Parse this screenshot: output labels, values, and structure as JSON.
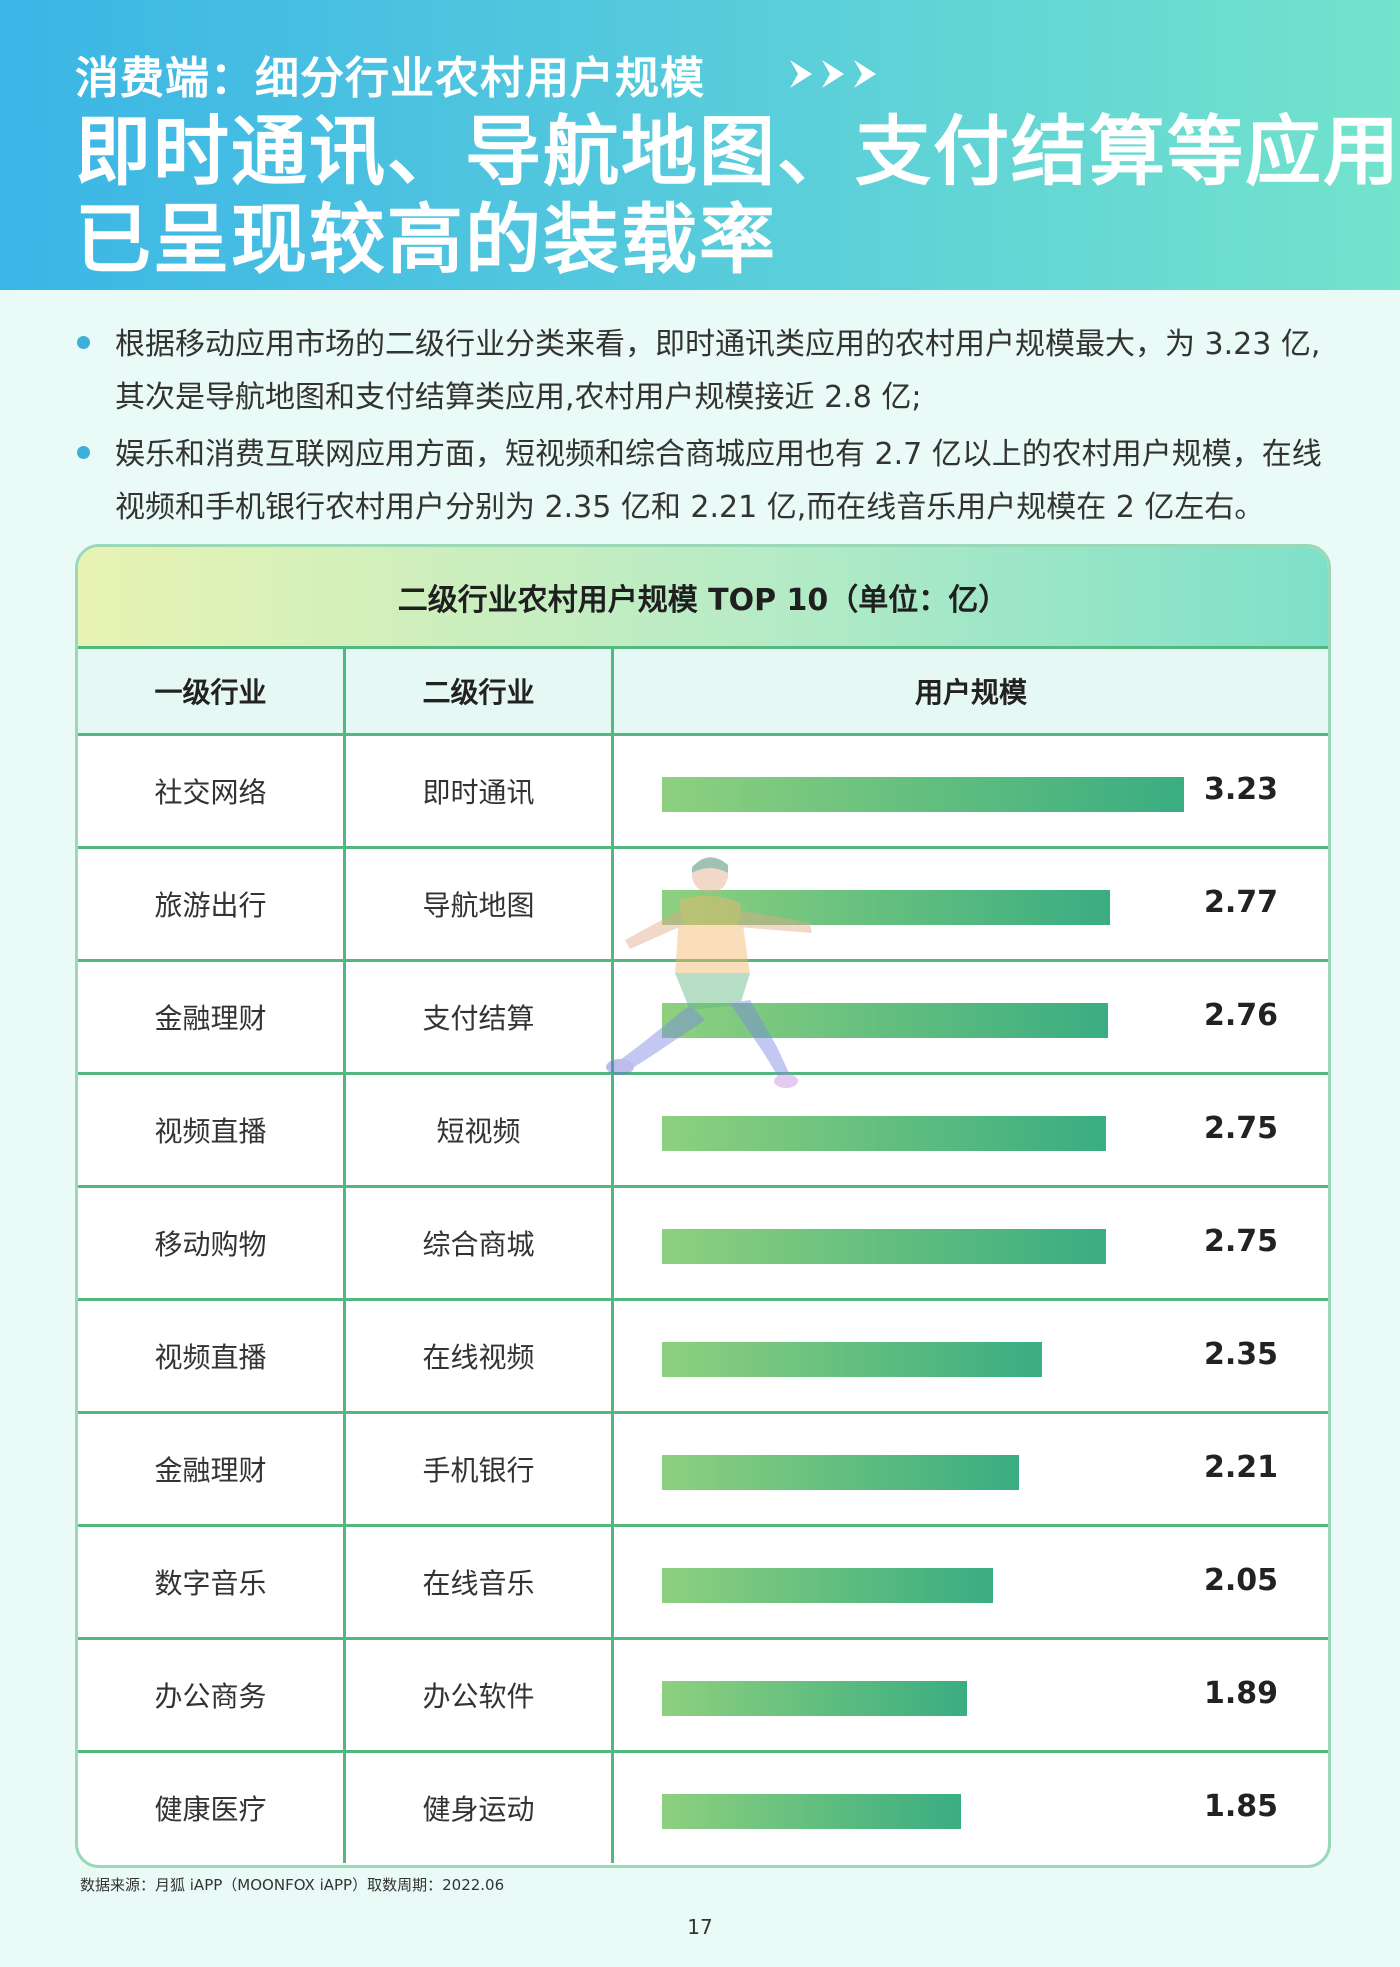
{
  "header": {
    "kicker": "消费端：细分行业农村用户规模",
    "headline_line1": "即时通讯、导航地图、支付结算等应用",
    "headline_line2": "已呈现较高的装载率",
    "arrow_icon": "triple-chevron-right-icon"
  },
  "bullets": [
    "根据移动应用市场的二级行业分类来看，即时通讯类应用的农村用户规模最大，为 3.23 亿,其次是导航地图和支付结算类应用,农村用户规模接近 2.8 亿;",
    "娱乐和消费互联网应用方面，短视频和综合商城应用也有 2.7 亿以上的农村用户规模，在线视频和手机银行农村用户分别为 2.35 亿和 2.21 亿,而在线音乐用户规模在 2 亿左右。"
  ],
  "table": {
    "title": "二级行业农村用户规模 TOP 10（单位：亿）",
    "headers": [
      "一级行业",
      "二级行业",
      "用户规模"
    ]
  },
  "chart_data": {
    "type": "table",
    "max_value": 3.23,
    "rows": [
      {
        "industry": "社交网络",
        "sub": "即时通讯",
        "value": 3.23
      },
      {
        "industry": "旅游出行",
        "sub": "导航地图",
        "value": 2.77
      },
      {
        "industry": "金融理财",
        "sub": "支付结算",
        "value": 2.76
      },
      {
        "industry": "视频直播",
        "sub": "短视频",
        "value": 2.75
      },
      {
        "industry": "移动购物",
        "sub": "综合商城",
        "value": 2.75
      },
      {
        "industry": "视频直播",
        "sub": "在线视频",
        "value": 2.35
      },
      {
        "industry": "金融理财",
        "sub": "手机银行",
        "value": 2.21
      },
      {
        "industry": "数字音乐",
        "sub": "在线音乐",
        "value": 2.05
      },
      {
        "industry": "办公商务",
        "sub": "办公软件",
        "value": 1.89
      },
      {
        "industry": "健康医疗",
        "sub": "健身运动",
        "value": 1.85
      }
    ]
  },
  "footer": {
    "source": "数据来源：月狐 iAPP（MOONFOX iAPP）取数周期：2022.06",
    "page_number": "17"
  },
  "colors": {
    "header_gradient": [
      "#3bb5e6",
      "#73e3cc"
    ],
    "bar_gradient": [
      "#8ed07f",
      "#3aad82"
    ],
    "table_border": "#52b87f",
    "bullet_dot": "#3bb0d8"
  }
}
